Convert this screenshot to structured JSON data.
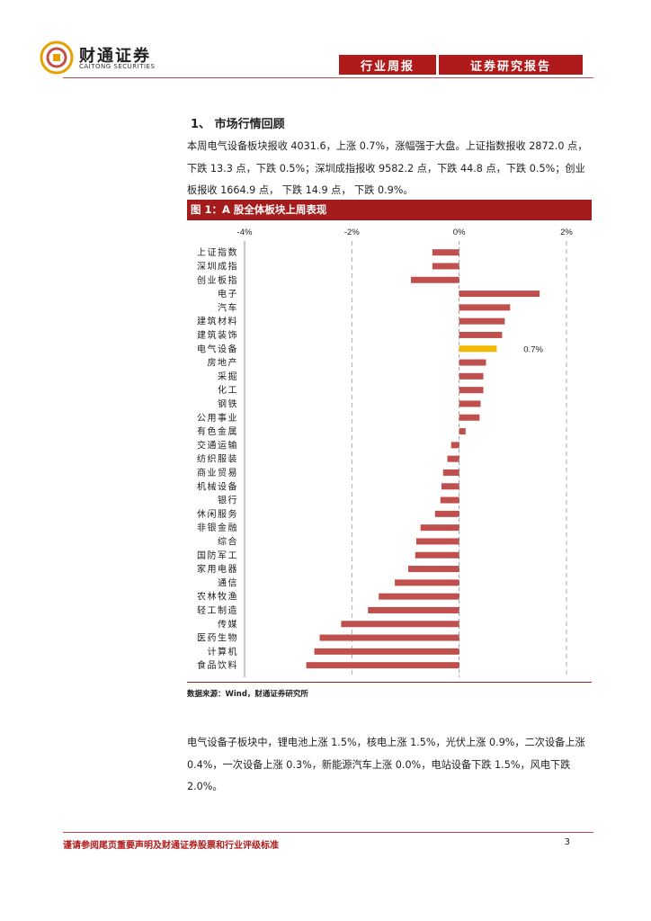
{
  "header": {
    "logo_name": "财通证券",
    "logo_sub": "CAITONG SECURITIES",
    "tag_weekly": "行业周报",
    "tag_report": "证券研究报告"
  },
  "section": {
    "title": "1、 市场行情回顾",
    "paragraph1": "本周电气设备板块报收 4031.6，上涨 0.7%，涨幅强于大盘。上证指数报收 2872.0 点，下跌 13.3 点，下跌 0.5%；深圳成指报收 9582.2 点，下跌 44.8 点，下跌 0.5%；创业板报收 1664.9 点， 下跌 14.9 点， 下跌 0.9%。"
  },
  "figure": {
    "title": "图 1：A 股全体板块上周表现",
    "source": "数据来源：Wind，财通证券研究所"
  },
  "chart_data": {
    "type": "bar",
    "orientation": "horizontal",
    "title": "图 1：A 股全体板块上周表现",
    "xlim": [
      -4,
      2
    ],
    "xticks": [
      "-4%",
      "-2%",
      "0%",
      "2%"
    ],
    "highlight": "电气设备",
    "highlight_label": "0.7%",
    "colors": {
      "normal": "#c0504d",
      "highlight": "#f5b800"
    },
    "categories": [
      "上证指数",
      "深圳成指",
      "创业板指",
      "电子",
      "汽车",
      "建筑材料",
      "建筑装饰",
      "电气设备",
      "房地产",
      "采掘",
      "化工",
      "钢铁",
      "公用事业",
      "有色金属",
      "交通运输",
      "纺织服装",
      "商业贸易",
      "机械设备",
      "银行",
      "休闲服务",
      "非银金融",
      "综合",
      "国防军工",
      "家用电器",
      "通信",
      "农林牧渔",
      "轻工制造",
      "传媒",
      "医药生物",
      "计算机",
      "食品饮料"
    ],
    "values": [
      -0.5,
      -0.5,
      -0.9,
      1.5,
      0.95,
      0.85,
      0.8,
      0.7,
      0.5,
      0.45,
      0.45,
      0.4,
      0.38,
      0.12,
      -0.15,
      -0.22,
      -0.3,
      -0.33,
      -0.35,
      -0.45,
      -0.72,
      -0.8,
      -0.82,
      -0.95,
      -1.2,
      -1.5,
      -1.7,
      -2.2,
      -2.6,
      -2.7,
      -2.85
    ]
  },
  "section2": {
    "paragraph": "电气设备子板块中，锂电池上涨 1.5%，核电上涨 1.5%，光伏上涨 0.9%，二次设备上涨 0.4%，一次设备上涨 0.3%，新能源汽车上涨 0.0%，电站设备下跌 1.5%，风电下跌 2.0%。"
  },
  "footer": {
    "disclaimer": "谨请参阅尾页重要声明及财通证券股票和行业评级标准",
    "page": "3"
  }
}
